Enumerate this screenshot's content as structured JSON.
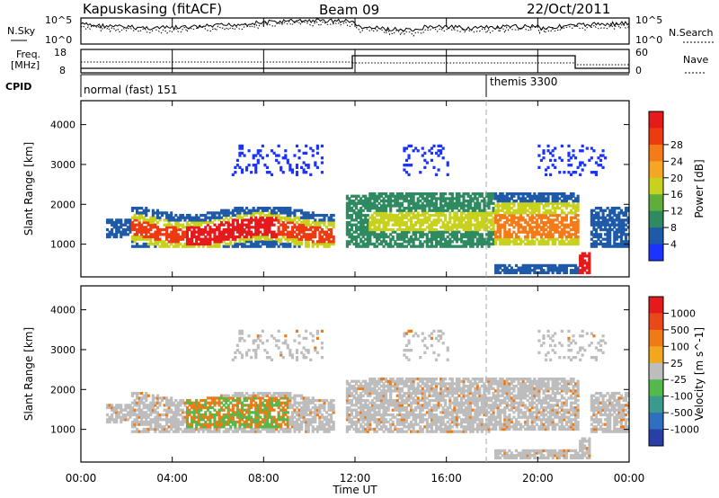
{
  "header": {
    "station": "Kapuskasing (fitACF)",
    "beam": "Beam 09",
    "date": "22/Oct/2011"
  },
  "strip": {
    "nsky_label": "N.Sky",
    "nsearch_label": "N.Search",
    "freq_label": "Freq.",
    "freq_unit": "[MHz]",
    "nave_label": "Nave",
    "cpid_label": "CPID",
    "left_ticks_top": [
      "10^5",
      "10^0"
    ],
    "right_ticks_top": [
      "10^5",
      "10^0"
    ],
    "left_ticks_mid": [
      "18",
      "8"
    ],
    "right_ticks_mid": [
      "60",
      "0"
    ]
  },
  "cpid": [
    {
      "label": "normal (fast) 151",
      "start": "00:00"
    },
    {
      "label": "themis 3300",
      "start": "18:00"
    }
  ],
  "chart_data": [
    {
      "type": "heatmap",
      "name": "power-panel",
      "ylabel": "Slant Range [km]",
      "yticks": [
        1000,
        2000,
        3000,
        4000
      ],
      "ylim": [
        180,
        4600
      ],
      "x_range_hours": [
        0,
        24
      ],
      "colorbar": {
        "label": "Power [dB]",
        "ticks": [
          "4",
          "8",
          "12",
          "16",
          "20",
          "24",
          "28"
        ],
        "colors": [
          "#1a33ff",
          "#1f5aa8",
          "#2f8a60",
          "#5fae3c",
          "#c8d21e",
          "#f5a623",
          "#f57a18",
          "#ee3a10",
          "#e41a1c"
        ]
      }
    },
    {
      "type": "heatmap",
      "name": "velocity-panel",
      "ylabel": "Slant Range [km]",
      "yticks": [
        1000,
        2000,
        3000,
        4000
      ],
      "ylim": [
        180,
        4600
      ],
      "x_range_hours": [
        0,
        24
      ],
      "colorbar": {
        "label": "Velocity [m s^-1]",
        "ticks": [
          "1000",
          "500",
          "100",
          "25",
          "-25",
          "-100",
          "-500",
          "-1000"
        ],
        "colors": [
          "#2a3ea8",
          "#2f6fbf",
          "#3a9a8c",
          "#55b84a",
          "#bdbdbd",
          "#f2a81e",
          "#f07a16",
          "#e8481a",
          "#e41a1c"
        ]
      }
    }
  ],
  "time_axis": {
    "ticks": [
      "00:00",
      "04:00",
      "08:00",
      "12:00",
      "16:00",
      "20:00",
      "00:00"
    ],
    "label": "Time UT"
  }
}
